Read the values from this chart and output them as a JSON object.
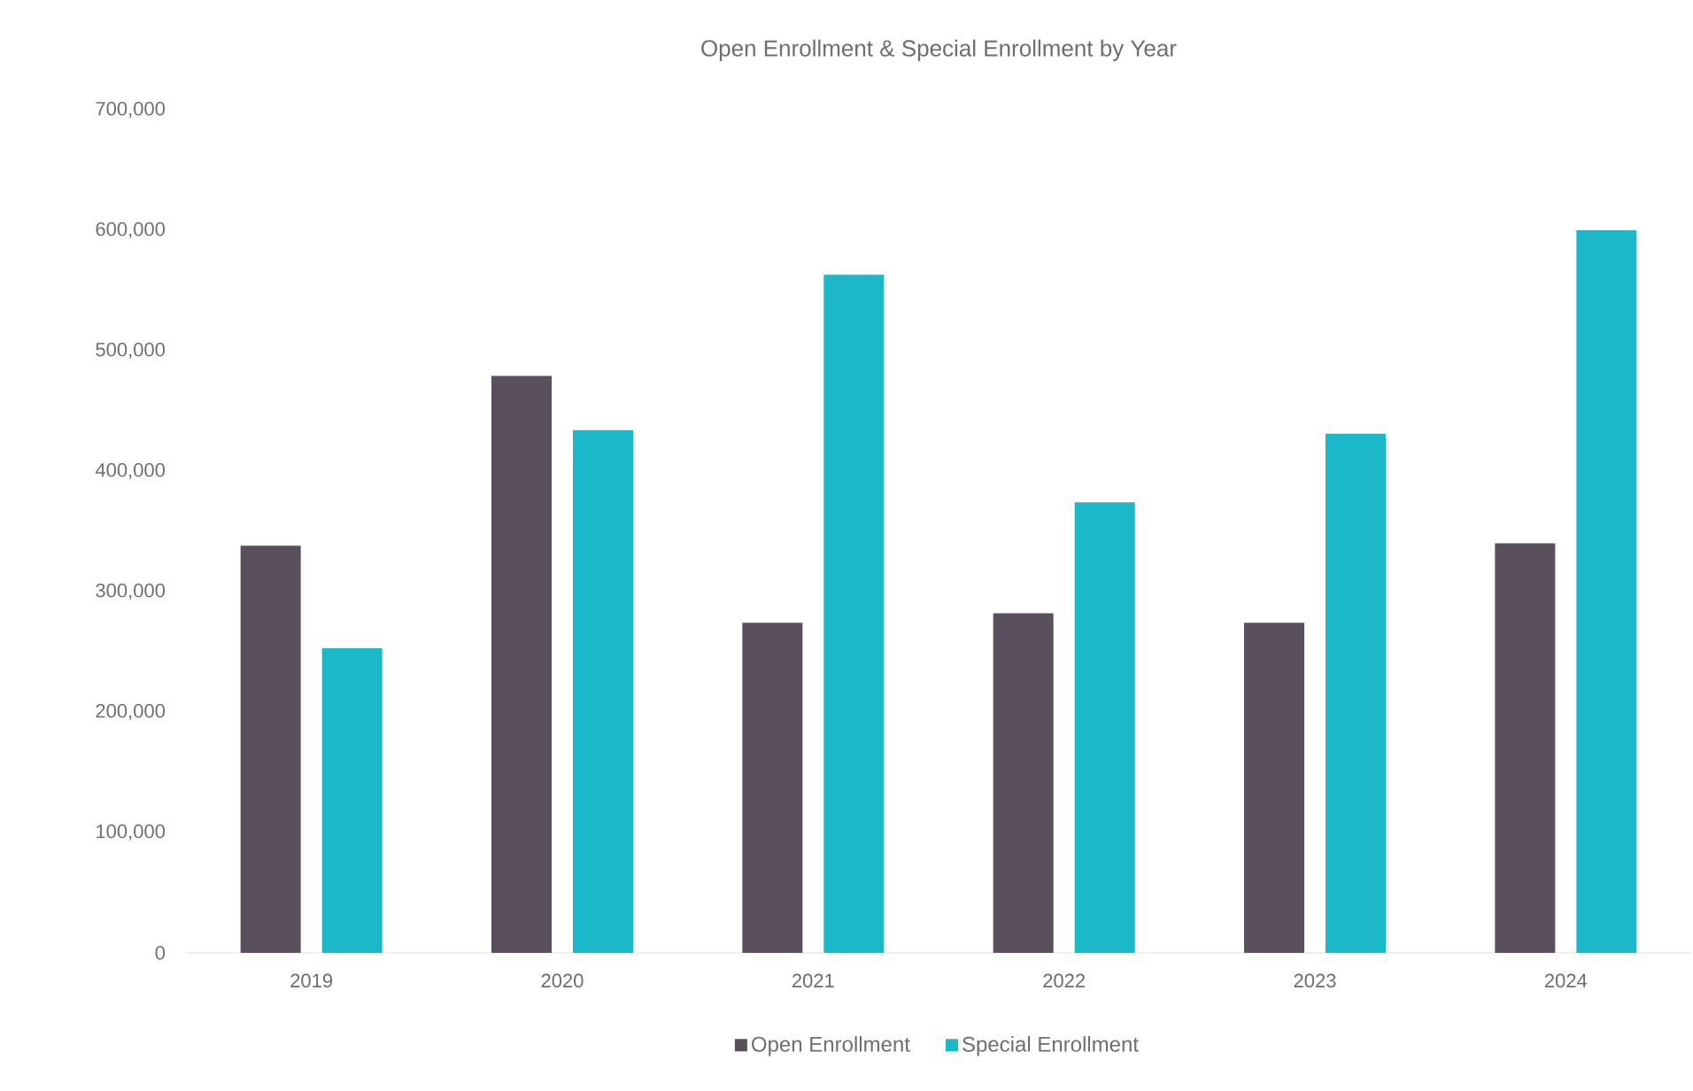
{
  "chart_data": {
    "type": "bar",
    "title": "Open Enrollment & Special Enrollment by Year",
    "categories": [
      "2019",
      "2020",
      "2021",
      "2022",
      "2023",
      "2024"
    ],
    "series": [
      {
        "name": "Open Enrollment",
        "color": "#5a4f5c",
        "values": [
          338000,
          479000,
          274000,
          282000,
          274000,
          340000
        ]
      },
      {
        "name": "Special Enrollment",
        "color": "#1bb8c9",
        "values": [
          253000,
          434000,
          563000,
          374000,
          431000,
          600000
        ]
      }
    ],
    "ylim": [
      0,
      700000
    ],
    "yticks": [
      {
        "value": 0,
        "label": "0"
      },
      {
        "value": 100000,
        "label": "100,000"
      },
      {
        "value": 200000,
        "label": "200,000"
      },
      {
        "value": 300000,
        "label": "300,000"
      },
      {
        "value": 400000,
        "label": "400,000"
      },
      {
        "value": 500000,
        "label": "500,000"
      },
      {
        "value": 600000,
        "label": "600,000"
      },
      {
        "value": 700000,
        "label": "700,000"
      }
    ],
    "grid": false,
    "legend": "bottom"
  }
}
